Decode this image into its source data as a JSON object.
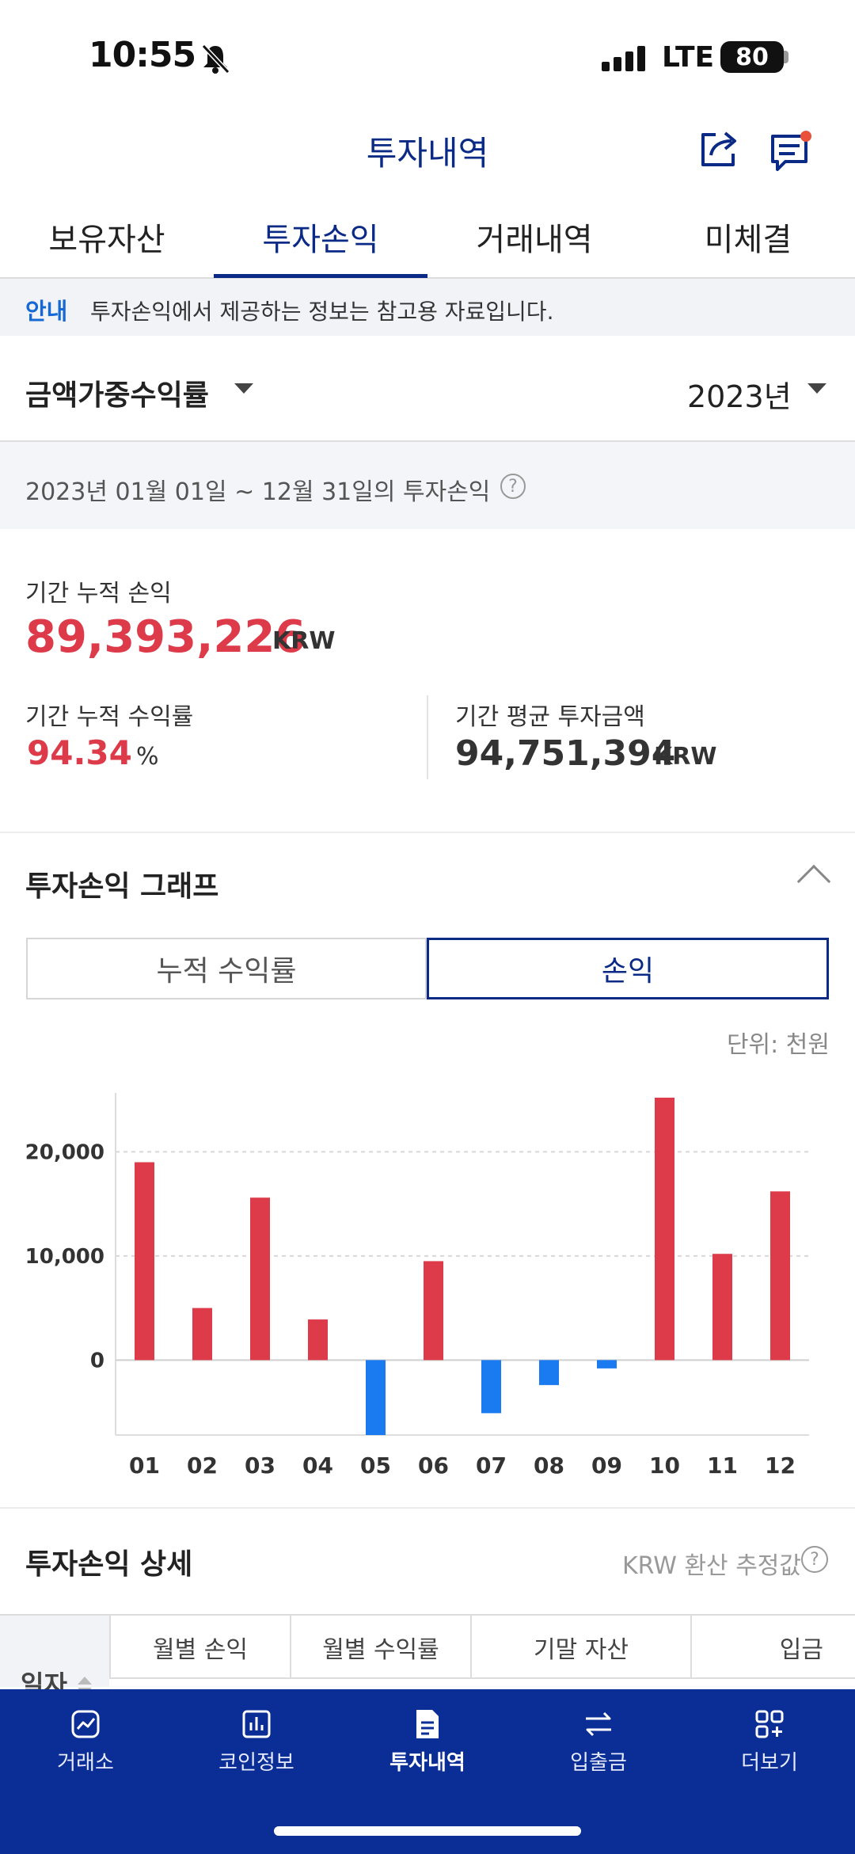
{
  "status_bar": {
    "time": "10:55",
    "network": "LTE",
    "battery": "80"
  },
  "header": {
    "title": "투자내역"
  },
  "tabs": [
    "보유자산",
    "투자손익",
    "거래내역",
    "미체결"
  ],
  "notice": {
    "tag": "안내",
    "text": "투자손익에서 제공하는 정보는 참고용 자료입니다."
  },
  "filters": {
    "metric": "금액가중수익률",
    "year": "2023년"
  },
  "period": {
    "text": "2023년 01월 01일 ~ 12월 31일의 투자손익"
  },
  "summary": {
    "cum_pnl_label": "기간 누적 손익",
    "cum_pnl_value": "89,393,226",
    "cum_pnl_unit": "KRW",
    "cum_return_label": "기간 누적 수익률",
    "cum_return_value": "94.34",
    "cum_return_unit": "%",
    "avg_invest_label": "기간 평균 투자금액",
    "avg_invest_value": "94,751,394",
    "avg_invest_unit": "KRW"
  },
  "graph_section": {
    "title": "투자손익 그래프",
    "toggle": [
      "누적 수익률",
      "손익"
    ],
    "unit_note": "단위: 천원"
  },
  "chart_data": {
    "type": "bar",
    "categories": [
      "01",
      "02",
      "03",
      "04",
      "05",
      "06",
      "07",
      "08",
      "09",
      "10",
      "11",
      "12"
    ],
    "values": [
      19000,
      5000,
      15600,
      3900,
      -7200,
      9500,
      -5100,
      -2400,
      -800,
      25200,
      10200,
      16200
    ],
    "y_ticks": [
      "20,000",
      "10,000",
      "0"
    ],
    "ylim": [
      -7200,
      25200
    ],
    "colors": {
      "positive": "#dd3a4a",
      "negative": "#1a7af0"
    },
    "grid": "dashed horizontal"
  },
  "detail_section": {
    "title": "투자손익 상세",
    "note": "KRW 환산 추정값",
    "first_col": "일자",
    "columns": [
      "월별 손익",
      "월별 수익률",
      "기말 자산",
      "입금"
    ]
  },
  "bottom_nav": [
    {
      "label": "거래소",
      "icon": "exchange-chart-icon"
    },
    {
      "label": "코인정보",
      "icon": "bar-chart-icon"
    },
    {
      "label": "투자내역",
      "icon": "document-icon"
    },
    {
      "label": "입출금",
      "icon": "transfer-arrows-icon"
    },
    {
      "label": "더보기",
      "icon": "grid-plus-icon"
    }
  ]
}
